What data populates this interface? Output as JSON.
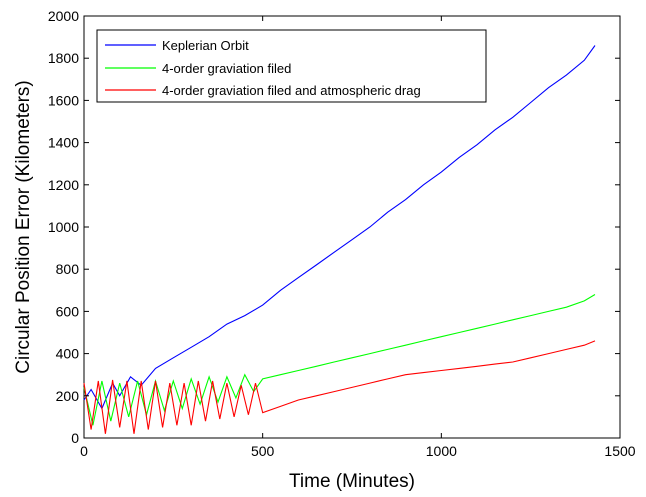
{
  "chart_data": {
    "type": "line",
    "xlabel": "Time (Minutes)",
    "ylabel": "Circular Position Error (Kilometers)",
    "xlim": [
      0,
      1500
    ],
    "ylim": [
      0,
      2000
    ],
    "xticks": [
      0,
      500,
      1000,
      1500
    ],
    "yticks": [
      0,
      200,
      400,
      600,
      800,
      1000,
      1200,
      1400,
      1600,
      1800,
      2000
    ],
    "grid": false,
    "legend_position": "top-left",
    "series": [
      {
        "name": "Keplerian Orbit",
        "color": "#0000ff",
        "x": [
          0,
          20,
          50,
          80,
          100,
          130,
          160,
          200,
          250,
          300,
          350,
          400,
          450,
          500,
          550,
          600,
          650,
          700,
          750,
          800,
          850,
          900,
          950,
          1000,
          1050,
          1100,
          1150,
          1200,
          1250,
          1300,
          1350,
          1400,
          1430
        ],
        "y": [
          180,
          230,
          140,
          260,
          200,
          290,
          250,
          330,
          380,
          430,
          480,
          540,
          580,
          630,
          700,
          760,
          820,
          880,
          940,
          1000,
          1070,
          1130,
          1200,
          1260,
          1330,
          1390,
          1460,
          1520,
          1590,
          1660,
          1720,
          1790,
          1860
        ]
      },
      {
        "name": "4-order graviation filed",
        "color": "#00ff00",
        "x": [
          0,
          25,
          50,
          75,
          100,
          125,
          150,
          175,
          200,
          225,
          250,
          275,
          300,
          325,
          350,
          375,
          400,
          425,
          450,
          475,
          500,
          550,
          600,
          650,
          700,
          750,
          800,
          850,
          900,
          950,
          1000,
          1050,
          1100,
          1150,
          1200,
          1250,
          1300,
          1350,
          1400,
          1430
        ],
        "y": [
          240,
          60,
          270,
          80,
          260,
          100,
          270,
          110,
          270,
          130,
          270,
          140,
          280,
          160,
          290,
          170,
          290,
          190,
          300,
          220,
          280,
          300,
          320,
          340,
          360,
          380,
          400,
          420,
          440,
          460,
          480,
          500,
          520,
          540,
          560,
          580,
          600,
          620,
          650,
          680
        ]
      },
      {
        "name": "4-order graviation filed and atmospheric drag",
        "color": "#ff0000",
        "x": [
          0,
          20,
          40,
          60,
          80,
          100,
          120,
          140,
          160,
          180,
          200,
          220,
          240,
          260,
          280,
          300,
          320,
          340,
          360,
          380,
          400,
          420,
          440,
          460,
          480,
          500,
          550,
          600,
          650,
          700,
          750,
          800,
          850,
          900,
          950,
          1000,
          1050,
          1100,
          1150,
          1200,
          1250,
          1300,
          1350,
          1400,
          1430
        ],
        "y": [
          260,
          40,
          270,
          20,
          275,
          50,
          270,
          20,
          270,
          40,
          270,
          50,
          260,
          60,
          260,
          60,
          270,
          80,
          270,
          90,
          260,
          100,
          250,
          110,
          260,
          120,
          150,
          180,
          200,
          220,
          240,
          260,
          280,
          300,
          310,
          320,
          330,
          340,
          350,
          360,
          380,
          400,
          420,
          440,
          460
        ]
      }
    ]
  }
}
